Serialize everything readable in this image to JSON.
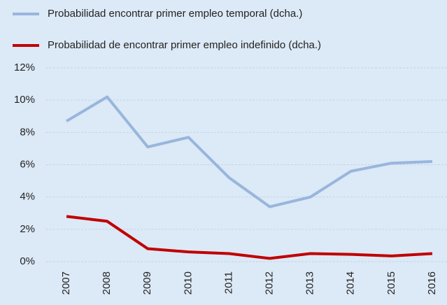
{
  "chart_data": {
    "type": "line",
    "categories": [
      "2007",
      "2008",
      "2009",
      "2010",
      "2011",
      "2012",
      "2013",
      "2014",
      "2015",
      "2016"
    ],
    "series": [
      {
        "name": "Probabilidad encontrar primer empleo temporal (dcha.)",
        "color": "#98b6dc",
        "values": [
          8.7,
          10.2,
          7.1,
          7.7,
          5.2,
          3.4,
          4.0,
          5.6,
          6.1,
          6.2
        ]
      },
      {
        "name": "Probabilidad de encontrar primer empleo indefinido (dcha.)",
        "color": "#c00000",
        "values": [
          2.8,
          2.5,
          0.8,
          0.6,
          0.5,
          0.2,
          0.5,
          0.45,
          0.35,
          0.5
        ]
      }
    ],
    "ylim": [
      0,
      12
    ],
    "yticks": [
      {
        "value": 0,
        "label": "0%"
      },
      {
        "value": 2,
        "label": "2%"
      },
      {
        "value": 4,
        "label": "4%"
      },
      {
        "value": 6,
        "label": "6%"
      },
      {
        "value": 8,
        "label": "8%"
      },
      {
        "value": 10,
        "label": "10%"
      },
      {
        "value": 12,
        "label": "12%"
      }
    ],
    "grid": true
  }
}
